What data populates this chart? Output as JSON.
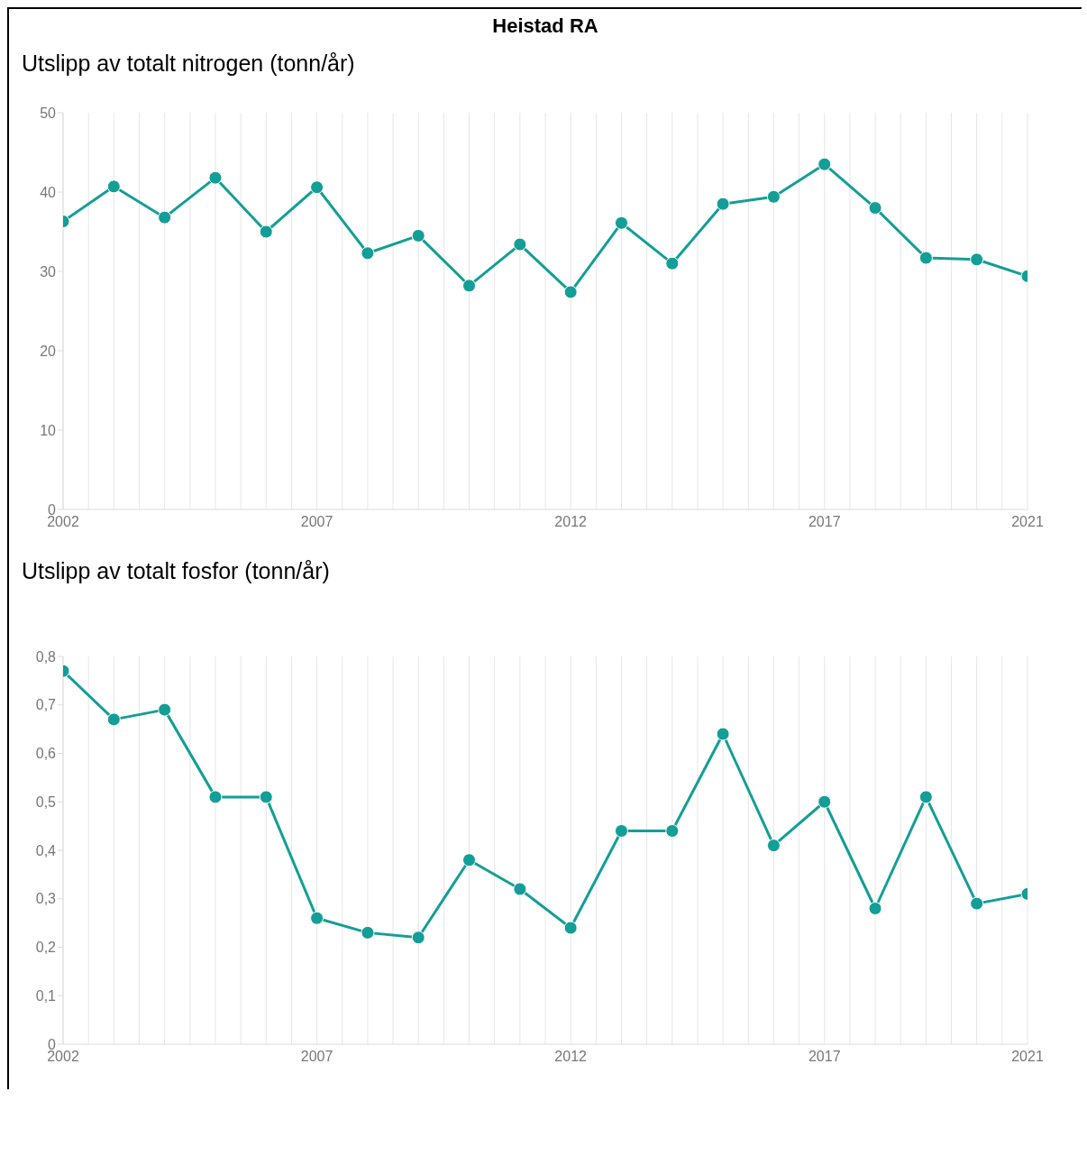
{
  "chart_data": [
    {
      "type": "line",
      "title": "Heistad RA",
      "subtitle": "Utslipp av totalt nitrogen (tonn/år)",
      "x": [
        2002,
        2003,
        2004,
        2005,
        2006,
        2007,
        2008,
        2009,
        2010,
        2011,
        2012,
        2013,
        2014,
        2015,
        2016,
        2017,
        2018,
        2019,
        2020,
        2021
      ],
      "series": [
        {
          "color": "#139e97",
          "values": [
            36.3,
            40.7,
            36.8,
            41.8,
            35.0,
            40.6,
            32.3,
            34.5,
            28.2,
            33.4,
            27.4,
            36.1,
            31.0,
            38.5,
            39.4,
            43.5,
            38.0,
            31.7,
            31.5,
            29.4
          ]
        }
      ],
      "xlim": [
        2002,
        2021
      ],
      "xticks": [
        2002,
        {
          "value": 2002.5,
          "label": null
        },
        {
          "value": 2003,
          "label": null
        },
        {
          "value": 2003.5,
          "label": null
        },
        {
          "value": 2004,
          "label": null
        },
        {
          "value": 2004.5,
          "label": null
        },
        {
          "value": 2005,
          "label": null
        },
        {
          "value": 2005.5,
          "label": null
        },
        {
          "value": 2006,
          "label": null
        },
        {
          "value": 2006.5,
          "label": null
        },
        2007,
        {
          "value": 2007.5,
          "label": null
        },
        {
          "value": 2008,
          "label": null
        },
        {
          "value": 2008.5,
          "label": null
        },
        {
          "value": 2009,
          "label": null
        },
        {
          "value": 2009.5,
          "label": null
        },
        {
          "value": 2010,
          "label": null
        },
        {
          "value": 2010.5,
          "label": null
        },
        {
          "value": 2011,
          "label": null
        },
        {
          "value": 2011.5,
          "label": null
        },
        2012,
        {
          "value": 2012.5,
          "label": null
        },
        {
          "value": 2013,
          "label": null
        },
        {
          "value": 2013.5,
          "label": null
        },
        {
          "value": 2014,
          "label": null
        },
        {
          "value": 2014.5,
          "label": null
        },
        {
          "value": 2015,
          "label": null
        },
        {
          "value": 2015.5,
          "label": null
        },
        {
          "value": 2016,
          "label": null
        },
        {
          "value": 2016.5,
          "label": null
        },
        2017,
        {
          "value": 2017.5,
          "label": null
        },
        {
          "value": 2018,
          "label": null
        },
        {
          "value": 2018.5,
          "label": null
        },
        {
          "value": 2019,
          "label": null
        },
        {
          "value": 2019.5,
          "label": null
        },
        {
          "value": 2020,
          "label": null
        },
        {
          "value": 2020.5,
          "label": null
        },
        2021
      ],
      "ylim": [
        0,
        50
      ],
      "yticks": [
        0,
        10,
        20,
        30,
        40,
        50
      ],
      "grid": "x",
      "marker": "circle",
      "line_style": "solid"
    },
    {
      "type": "line",
      "title": "Utslipp av totalt fosfor (tonn/år)",
      "x": [
        2002,
        2003,
        2004,
        2005,
        2006,
        2007,
        2008,
        2009,
        2010,
        2011,
        2012,
        2013,
        2014,
        2015,
        2016,
        2017,
        2018,
        2019,
        2020,
        2021
      ],
      "series": [
        {
          "color": "#139e97",
          "values": [
            0.77,
            0.67,
            0.69,
            0.51,
            0.51,
            0.26,
            0.23,
            0.22,
            0.38,
            0.32,
            0.24,
            0.44,
            0.44,
            0.64,
            0.41,
            0.5,
            0.28,
            0.51,
            0.29,
            0.31
          ]
        }
      ],
      "xlim": [
        2002,
        2021
      ],
      "xticks": [
        2002,
        {
          "value": 2002.5,
          "label": null
        },
        {
          "value": 2003,
          "label": null
        },
        {
          "value": 2003.5,
          "label": null
        },
        {
          "value": 2004,
          "label": null
        },
        {
          "value": 2004.5,
          "label": null
        },
        {
          "value": 2005,
          "label": null
        },
        {
          "value": 2005.5,
          "label": null
        },
        {
          "value": 2006,
          "label": null
        },
        {
          "value": 2006.5,
          "label": null
        },
        2007,
        {
          "value": 2007.5,
          "label": null
        },
        {
          "value": 2008,
          "label": null
        },
        {
          "value": 2008.5,
          "label": null
        },
        {
          "value": 2009,
          "label": null
        },
        {
          "value": 2009.5,
          "label": null
        },
        {
          "value": 2010,
          "label": null
        },
        {
          "value": 2010.5,
          "label": null
        },
        {
          "value": 2011,
          "label": null
        },
        {
          "value": 2011.5,
          "label": null
        },
        2012,
        {
          "value": 2012.5,
          "label": null
        },
        {
          "value": 2013,
          "label": null
        },
        {
          "value": 2013.5,
          "label": null
        },
        {
          "value": 2014,
          "label": null
        },
        {
          "value": 2014.5,
          "label": null
        },
        {
          "value": 2015,
          "label": null
        },
        {
          "value": 2015.5,
          "label": null
        },
        {
          "value": 2016,
          "label": null
        },
        {
          "value": 2016.5,
          "label": null
        },
        2017,
        {
          "value": 2017.5,
          "label": null
        },
        {
          "value": 2018,
          "label": null
        },
        {
          "value": 2018.5,
          "label": null
        },
        {
          "value": 2019,
          "label": null
        },
        {
          "value": 2019.5,
          "label": null
        },
        {
          "value": 2020,
          "label": null
        },
        {
          "value": 2020.5,
          "label": null
        },
        2021
      ],
      "ylim": [
        0,
        0.8
      ],
      "yticks": [
        0,
        {
          "value": 0.1,
          "label": "0,1"
        },
        {
          "value": 0.2,
          "label": "0,2"
        },
        {
          "value": 0.3,
          "label": "0,3"
        },
        {
          "value": 0.4,
          "label": "0,4"
        },
        {
          "value": 0.5,
          "label": "0,5"
        },
        {
          "value": 0.6,
          "label": "0,6"
        },
        {
          "value": 0.7,
          "label": "0,7"
        },
        {
          "value": 0.8,
          "label": "0,8"
        }
      ],
      "grid": "x",
      "marker": "circle",
      "line_style": "solid"
    }
  ]
}
